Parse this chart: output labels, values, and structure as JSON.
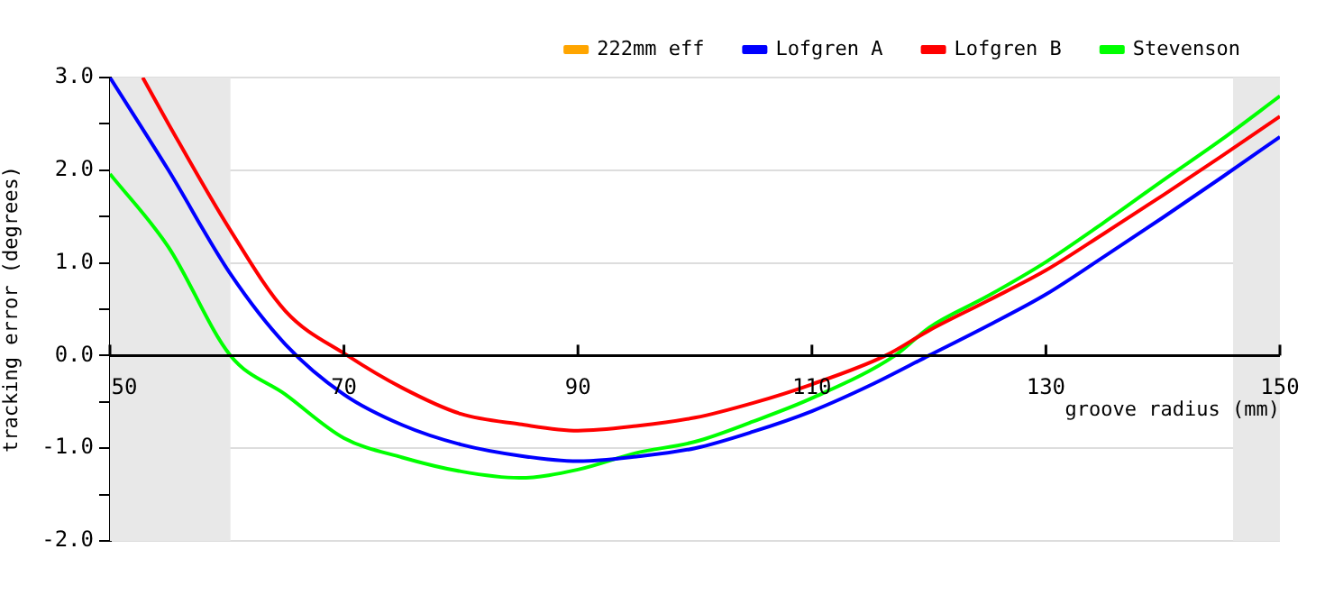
{
  "chart_data": {
    "type": "line",
    "xlabel": "groove radius (mm)",
    "ylabel": "tracking error (degrees)",
    "xlim": [
      50,
      150
    ],
    "xticks": [
      50,
      70,
      90,
      110,
      130,
      150
    ],
    "ylim": [
      -2,
      3
    ],
    "yticks": [
      {
        "value": -2,
        "label": "-2.0"
      },
      {
        "value": -1.5,
        "label": null
      },
      {
        "value": -1,
        "label": "-1.0"
      },
      {
        "value": -0.5,
        "label": null
      },
      {
        "value": 0,
        "label": "0.0"
      },
      {
        "value": 0.5,
        "label": null
      },
      {
        "value": 1,
        "label": "1.0"
      },
      {
        "value": 1.5,
        "label": null
      },
      {
        "value": 2,
        "label": "2.0"
      },
      {
        "value": 2.5,
        "label": null
      },
      {
        "value": 3,
        "label": "3.0"
      }
    ],
    "grid": "y",
    "legend": "top right",
    "marker": "none",
    "line_style": "solid",
    "bands": [
      {
        "axis": "x",
        "from": 50,
        "to": 60.3,
        "color": "#e8e8e8"
      },
      {
        "axis": "x",
        "from": 146,
        "to": 150,
        "color": "#e8e8e8"
      }
    ],
    "series": [
      {
        "name": "222mm eff",
        "color": "#ffa500"
      },
      {
        "name": "Lofgren A",
        "color": "#0000ff",
        "x": [
          50,
          55,
          60.3,
          65,
          70,
          75,
          80,
          85,
          90,
          95,
          100,
          105,
          110,
          115,
          120,
          125,
          130,
          135,
          140,
          145,
          150
        ],
        "values": [
          3.0,
          2.0,
          0.88,
          0.12,
          -0.42,
          -0.75,
          -0.96,
          -1.08,
          -1.14,
          -1.09,
          -1.0,
          -0.82,
          -0.6,
          -0.32,
          0,
          0.32,
          0.66,
          1.07,
          1.49,
          1.92,
          2.36
        ]
      },
      {
        "name": "Lofgren B",
        "color": "#ff0000",
        "x": [
          52.8,
          55,
          60.3,
          65,
          70.3,
          75,
          80,
          85,
          90,
          95,
          100,
          105,
          110,
          116.3,
          120,
          125,
          130,
          135,
          140,
          145,
          150
        ],
        "values": [
          3.0,
          2.5,
          1.35,
          0.48,
          0,
          -0.35,
          -0.63,
          -0.74,
          -0.81,
          -0.76,
          -0.67,
          -0.51,
          -0.31,
          0,
          0.27,
          0.59,
          0.92,
          1.32,
          1.73,
          2.15,
          2.58
        ]
      },
      {
        "name": "Stevenson",
        "color": "#00ff00",
        "x": [
          50,
          55,
          60.3,
          65,
          70,
          75,
          80,
          85,
          90,
          95,
          100,
          105,
          110,
          117.1,
          120,
          125,
          130,
          135,
          140,
          145,
          150
        ],
        "values": [
          1.96,
          1.17,
          0,
          -0.42,
          -0.89,
          -1.1,
          -1.25,
          -1.32,
          -1.23,
          -1.05,
          -0.93,
          -0.71,
          -0.46,
          0,
          0.3,
          0.64,
          1.01,
          1.44,
          1.89,
          2.33,
          2.8
        ]
      }
    ]
  }
}
